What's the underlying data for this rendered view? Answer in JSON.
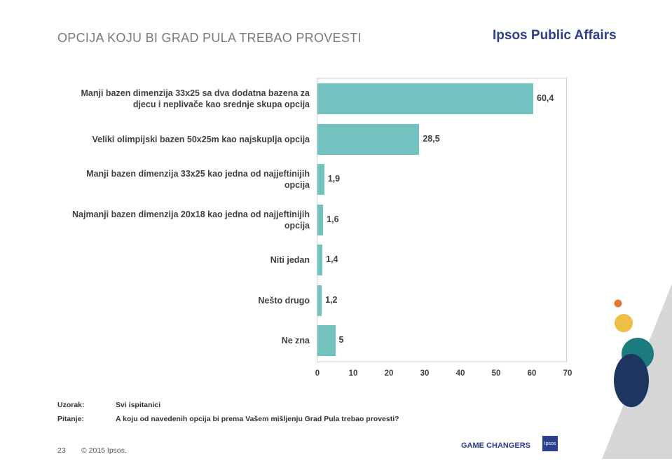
{
  "header": {
    "title": "OPCIJA KOJU BI GRAD PULA TREBAO PROVESTI",
    "brand": "Ipsos Public Affairs"
  },
  "chart_data": {
    "type": "bar",
    "orientation": "horizontal",
    "categories": [
      "Manji bazen dimenzija 33x25 sa dva dodatna bazena za djecu i neplivače kao srednje skupa opcija",
      "Veliki olimpijski bazen 50x25m kao najskuplja opcija",
      "Manji bazen dimenzija 33x25 kao jedna od najjeftinijih opcija",
      "Najmanji bazen dimenzija 20x18 kao jedna od najjeftinijih opcija",
      "Niti jedan",
      "Nešto drugo",
      "Ne zna"
    ],
    "category_lines": [
      [
        "Manji bazen dimenzija 33x25 sa dva dodatna bazena za",
        "djecu i neplivače kao srednje skupa opcija"
      ],
      [
        "Veliki olimpijski bazen 50x25m kao najskuplja opcija"
      ],
      [
        "Manji bazen dimenzija 33x25 kao jedna od najjeftinijih",
        "opcija"
      ],
      [
        "Najmanji bazen dimenzija 20x18 kao jedna od najjeftinijih",
        "opcija"
      ],
      [
        "Niti jedan"
      ],
      [
        "Nešto drugo"
      ],
      [
        "Ne zna"
      ]
    ],
    "values": [
      60.4,
      28.5,
      1.9,
      1.6,
      1.4,
      1.2,
      5
    ],
    "value_labels": [
      "60,4",
      "28,5",
      "1,9",
      "1,6",
      "1,4",
      "1,2",
      "5"
    ],
    "xlim": [
      0,
      70
    ],
    "xticks": [
      0,
      10,
      20,
      30,
      40,
      50,
      60,
      70
    ],
    "bar_color": "#72c2c0",
    "grid": false
  },
  "meta": {
    "sample_label": "Uzorak:",
    "sample_value": "Svi ispitanici",
    "question_label": "Pitanje:",
    "question_value": "A koju od navedenih opcija bi prema Vašem mišljenju Grad Pula trebao provesti?"
  },
  "footer": {
    "page_number": "23",
    "copyright": "© 2015 Ipsos.",
    "tagline": "GAME CHANGERS",
    "logo_text": "Ipsos"
  },
  "colors": {
    "brand_blue": "#2b3f8c",
    "deco_orange": "#e2782f",
    "deco_yellow": "#f0be45",
    "deco_teal": "#1c7b7e",
    "deco_navy": "#1d3561",
    "deco_gray": "#d6d6d6"
  }
}
